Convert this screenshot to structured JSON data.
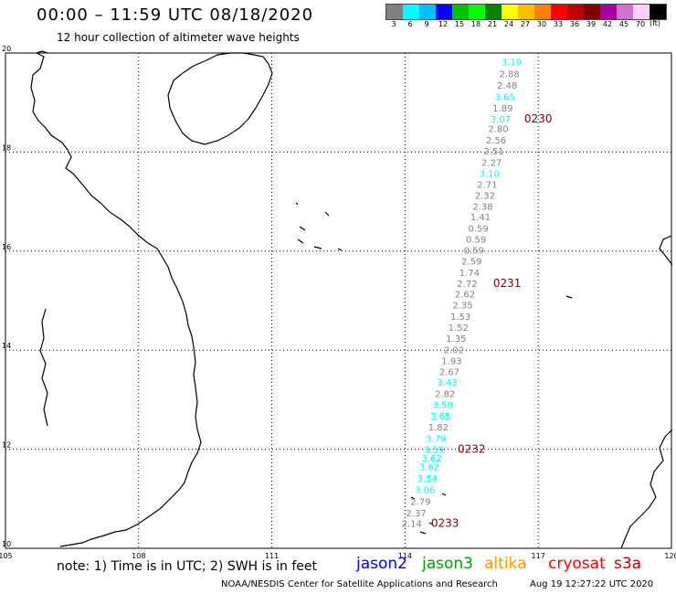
{
  "header": {
    "title": "00:00 – 11:59 UTC 08/18/2020",
    "subtitle": "12 hour collection of altimeter wave heights"
  },
  "color_scale": {
    "unit": "(ft)",
    "bins": [
      {
        "label": "3",
        "color": "#808080"
      },
      {
        "label": "6",
        "color": "#00ffff"
      },
      {
        "label": "9",
        "color": "#00bfff"
      },
      {
        "label": "12",
        "color": "#0000ff"
      },
      {
        "label": "15",
        "color": "#00c000"
      },
      {
        "label": "18",
        "color": "#00ff00"
      },
      {
        "label": "21",
        "color": "#008000"
      },
      {
        "label": "24",
        "color": "#ffff00"
      },
      {
        "label": "27",
        "color": "#ffc000"
      },
      {
        "label": "30",
        "color": "#ff8000"
      },
      {
        "label": "33",
        "color": "#ff0000"
      },
      {
        "label": "36",
        "color": "#c00000"
      },
      {
        "label": "39",
        "color": "#800000"
      },
      {
        "label": "42",
        "color": "#a000a0"
      },
      {
        "label": "45",
        "color": "#d070d0"
      },
      {
        "label": "70",
        "color": "#ffd0ff"
      },
      {
        "label": "",
        "color": "#000000"
      }
    ]
  },
  "map": {
    "lon_ticks": [
      "105",
      "108",
      "111",
      "114",
      "117",
      "120"
    ],
    "lat_ticks": [
      "20",
      "18",
      "16",
      "14",
      "12",
      "10"
    ],
    "lon_range": [
      105,
      120
    ],
    "lat_range": [
      10,
      20
    ],
    "land_color": "#ffffff",
    "coast_color": "#000000"
  },
  "track": {
    "readings": [
      {
        "value": "3.19",
        "lon": 116.4,
        "lat": 19.75,
        "color": "#00ffff"
      },
      {
        "value": "2.88",
        "lon": 116.35,
        "lat": 19.51,
        "color": "#808080"
      },
      {
        "value": "2.48",
        "lon": 116.3,
        "lat": 19.28,
        "color": "#808080"
      },
      {
        "value": "3.65",
        "lon": 116.25,
        "lat": 19.05,
        "color": "#00ffff"
      },
      {
        "value": "1.89",
        "lon": 116.2,
        "lat": 18.82,
        "color": "#808080"
      },
      {
        "value": "3.07",
        "lon": 116.15,
        "lat": 18.6,
        "color": "#00ffff"
      },
      {
        "value": "2.80",
        "lon": 116.1,
        "lat": 18.4,
        "color": "#808080"
      },
      {
        "value": "2.56",
        "lon": 116.05,
        "lat": 18.17,
        "color": "#808080"
      },
      {
        "value": "2.51",
        "lon": 116.0,
        "lat": 17.95,
        "color": "#808080"
      },
      {
        "value": "2.27",
        "lon": 115.95,
        "lat": 17.72,
        "color": "#808080"
      },
      {
        "value": "3.10",
        "lon": 115.9,
        "lat": 17.5,
        "color": "#00ffff"
      },
      {
        "value": "2.71",
        "lon": 115.85,
        "lat": 17.28,
        "color": "#808080"
      },
      {
        "value": "2.32",
        "lon": 115.8,
        "lat": 17.06,
        "color": "#808080"
      },
      {
        "value": "2.38",
        "lon": 115.75,
        "lat": 16.84,
        "color": "#808080"
      },
      {
        "value": "1.41",
        "lon": 115.7,
        "lat": 16.62,
        "color": "#808080"
      },
      {
        "value": "0.59",
        "lon": 115.65,
        "lat": 16.39,
        "color": "#808080"
      },
      {
        "value": "0.59",
        "lon": 115.6,
        "lat": 16.17,
        "color": "#808080"
      },
      {
        "value": "0.59",
        "lon": 115.55,
        "lat": 15.95,
        "color": "#808080"
      },
      {
        "value": "2.59",
        "lon": 115.5,
        "lat": 15.73,
        "color": "#808080"
      },
      {
        "value": "1.74",
        "lon": 115.45,
        "lat": 15.5,
        "color": "#808080"
      },
      {
        "value": "2.72",
        "lon": 115.4,
        "lat": 15.28,
        "color": "#808080"
      },
      {
        "value": "2.62",
        "lon": 115.35,
        "lat": 15.06,
        "color": "#808080"
      },
      {
        "value": "2.35",
        "lon": 115.3,
        "lat": 14.84,
        "color": "#808080"
      },
      {
        "value": "1.53",
        "lon": 115.25,
        "lat": 14.61,
        "color": "#808080"
      },
      {
        "value": "1.52",
        "lon": 115.2,
        "lat": 14.39,
        "color": "#808080"
      },
      {
        "value": "1.35",
        "lon": 115.15,
        "lat": 14.17,
        "color": "#808080"
      },
      {
        "value": "2.02",
        "lon": 115.1,
        "lat": 13.94,
        "color": "#808080"
      },
      {
        "value": "1.93",
        "lon": 115.05,
        "lat": 13.72,
        "color": "#808080"
      },
      {
        "value": "2.67",
        "lon": 115.0,
        "lat": 13.5,
        "color": "#808080"
      },
      {
        "value": "3.43",
        "lon": 114.95,
        "lat": 13.28,
        "color": "#00ffff"
      },
      {
        "value": "2.82",
        "lon": 114.9,
        "lat": 13.05,
        "color": "#808080"
      },
      {
        "value": "3.58",
        "lon": 114.85,
        "lat": 12.83,
        "color": "#00ffff"
      },
      {
        "value": "3.65",
        "lon": 114.8,
        "lat": 12.6,
        "color": "#00ffff"
      },
      {
        "value": "1.82",
        "lon": 114.75,
        "lat": 12.38,
        "color": "#808080"
      },
      {
        "value": "3.79",
        "lon": 114.7,
        "lat": 12.15,
        "color": "#00ffff"
      },
      {
        "value": "3.59",
        "lon": 114.65,
        "lat": 11.93,
        "color": "#00ffff"
      },
      {
        "value": "3.62",
        "lon": 114.6,
        "lat": 11.75,
        "color": "#00ffff"
      },
      {
        "value": "3.62",
        "lon": 114.55,
        "lat": 11.58,
        "color": "#00ffff"
      },
      {
        "value": "3.54",
        "lon": 114.5,
        "lat": 11.35,
        "color": "#00ffff"
      },
      {
        "value": "3.06",
        "lon": 114.45,
        "lat": 11.12,
        "color": "#00ffff"
      },
      {
        "value": "2.79",
        "lon": 114.35,
        "lat": 10.88,
        "color": "#808080"
      },
      {
        "value": "2.37",
        "lon": 114.25,
        "lat": 10.65,
        "color": "#808080"
      },
      {
        "value": "2.14",
        "lon": 114.15,
        "lat": 10.43,
        "color": "#808080"
      }
    ],
    "times": [
      {
        "label": "0230",
        "lon": 117.0,
        "lat": 18.6
      },
      {
        "label": "0231",
        "lon": 116.3,
        "lat": 15.28
      },
      {
        "label": "0232",
        "lon": 115.5,
        "lat": 11.93
      },
      {
        "label": "0233",
        "lon": 114.9,
        "lat": 10.43
      }
    ],
    "time_color": "#800000"
  },
  "footer": {
    "note": "note: 1) Time is in UTC; 2) SWH is in feet",
    "satellites": [
      {
        "name": "jason2",
        "color": "#0000ff"
      },
      {
        "name": "jason3",
        "color": "#00a000"
      },
      {
        "name": "altika",
        "color": "#ff9900"
      },
      {
        "name": "cryosat",
        "color": "#ff0000"
      },
      {
        "name": "s3a",
        "color": "#c00000"
      }
    ],
    "credit": "NOAA/NESDIS Center for Satellite Applications and Research",
    "generated": "Aug 19 12:27:22 UTC 2020"
  }
}
